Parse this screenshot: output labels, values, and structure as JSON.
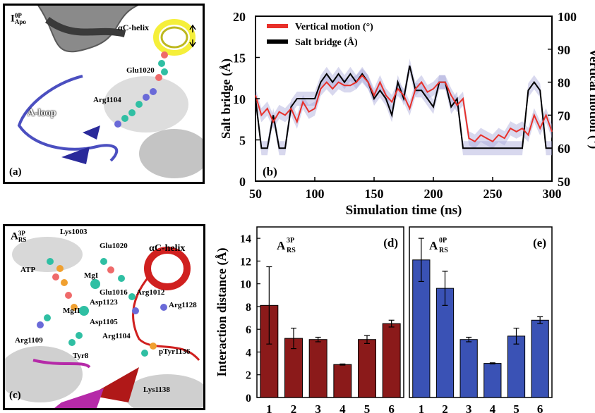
{
  "panel_a": {
    "state_label": "I",
    "state_sup": "0P",
    "state_sub": "Apo",
    "labels": {
      "ac_helix": "αC-helix",
      "glu": "Glu1020",
      "arg": "Arg1104",
      "aloop": "A-loop"
    },
    "tag": "(a)"
  },
  "panel_c": {
    "state_label": "A",
    "state_sup": "3P",
    "state_sub": "RS",
    "labels": {
      "lys1003": "Lys1003",
      "glu1020": "Glu1020",
      "ac_helix": "αC-helix",
      "atp": "ATP",
      "mgi": "MgI",
      "glu1016": "Glu1016",
      "arg1012": "Arg1012",
      "asp1123": "Asp1123",
      "mgii": "MgII",
      "arg1128": "Arg1128",
      "asp1105": "Asp1105",
      "arg1109": "Arg1109",
      "arg1104": "Arg1104",
      "tyr8": "Tyr8",
      "ptyr1136": "pTyr1136",
      "lys1138": "Lys1138"
    },
    "tag": "(c)"
  },
  "colors": {
    "red": "#e8302a",
    "black": "#000000",
    "halo": "#a9a9d9",
    "bar_d": "#8b1a1a",
    "bar_e": "#3a52b5",
    "aloop_blue": "#4b4fc0",
    "helix_yellow": "#f5ef3a",
    "helix_red": "#d0201f",
    "magenta": "#b52aa8"
  },
  "chart_data": [
    {
      "type": "line",
      "panel": "(b)",
      "xlabel": "Simulation time (ns)",
      "ylabel": "Salt bridge (Å)",
      "ylabel_right": "Vertical motion (°)",
      "xlim": [
        50,
        300
      ],
      "ylim": [
        0,
        20
      ],
      "ylim_right": [
        50,
        100
      ],
      "xticks": [
        50,
        100,
        150,
        200,
        250,
        300
      ],
      "yticks": [
        0,
        5,
        10,
        15,
        20
      ],
      "yticks_right": [
        50,
        60,
        70,
        80,
        90,
        100
      ],
      "legend_position": "top-left",
      "series": [
        {
          "name": "Vertical motion (°)",
          "axis": "right",
          "color": "#e8302a",
          "x": [
            50,
            55,
            60,
            65,
            70,
            75,
            80,
            85,
            90,
            95,
            100,
            105,
            110,
            115,
            120,
            125,
            130,
            135,
            140,
            145,
            150,
            155,
            160,
            165,
            170,
            175,
            180,
            185,
            190,
            195,
            200,
            205,
            210,
            215,
            220,
            225,
            230,
            235,
            240,
            245,
            250,
            255,
            260,
            265,
            270,
            275,
            280,
            285,
            290,
            295,
            300
          ],
          "y": [
            76,
            70,
            72,
            68,
            71,
            70,
            72,
            68,
            74,
            71,
            72,
            78,
            80,
            78,
            80,
            79,
            79,
            80,
            82,
            80,
            76,
            80,
            76,
            74,
            78,
            76,
            72,
            78,
            80,
            77,
            78,
            80,
            80,
            76,
            73,
            75,
            63,
            62,
            64,
            63,
            62,
            64,
            63,
            66,
            65,
            66,
            64,
            70,
            66,
            70,
            65
          ]
        },
        {
          "name": "Salt bridge (Å)",
          "axis": "left",
          "color": "#000000",
          "x": [
            50,
            55,
            60,
            65,
            70,
            75,
            80,
            85,
            90,
            95,
            100,
            105,
            110,
            115,
            120,
            125,
            130,
            135,
            140,
            145,
            150,
            155,
            160,
            165,
            170,
            175,
            180,
            185,
            190,
            195,
            200,
            205,
            210,
            215,
            220,
            225,
            230,
            235,
            240,
            245,
            250,
            255,
            260,
            265,
            270,
            275,
            280,
            285,
            290,
            295,
            300
          ],
          "y": [
            10,
            4,
            4,
            8,
            4,
            4,
            9,
            10,
            10,
            10,
            10,
            12,
            13,
            12,
            13,
            12,
            13,
            12,
            13,
            12,
            10,
            11,
            10,
            8,
            12,
            10,
            14,
            11,
            11,
            10,
            9,
            12,
            12,
            9,
            10,
            4,
            4,
            4,
            4,
            4,
            4,
            4,
            4,
            4,
            4,
            4,
            11,
            12,
            11,
            4,
            4
          ]
        }
      ]
    },
    {
      "type": "bar",
      "panel": "(d)",
      "label": "A",
      "label_sup": "3P",
      "label_sub": "RS",
      "ylabel": "Interaction distance (Å)",
      "categories": [
        "1",
        "2",
        "3",
        "4",
        "5",
        "6"
      ],
      "values": [
        8.1,
        5.2,
        5.1,
        2.9,
        5.1,
        6.5
      ],
      "errors": [
        3.4,
        0.9,
        0.2,
        0.05,
        0.35,
        0.3
      ],
      "ylim": [
        0,
        15
      ],
      "yticks": [
        0,
        2,
        4,
        6,
        8,
        10,
        12,
        14
      ],
      "color": "#8b1a1a"
    },
    {
      "type": "bar",
      "panel": "(e)",
      "label": "A",
      "label_sup": "0P",
      "label_sub": "RS",
      "categories": [
        "1",
        "2",
        "3",
        "4",
        "5",
        "6"
      ],
      "values": [
        12.1,
        9.6,
        5.1,
        3.0,
        5.4,
        6.8
      ],
      "errors": [
        1.9,
        1.5,
        0.2,
        0.05,
        0.7,
        0.3
      ],
      "ylim": [
        0,
        15
      ],
      "color": "#3a52b5"
    }
  ]
}
